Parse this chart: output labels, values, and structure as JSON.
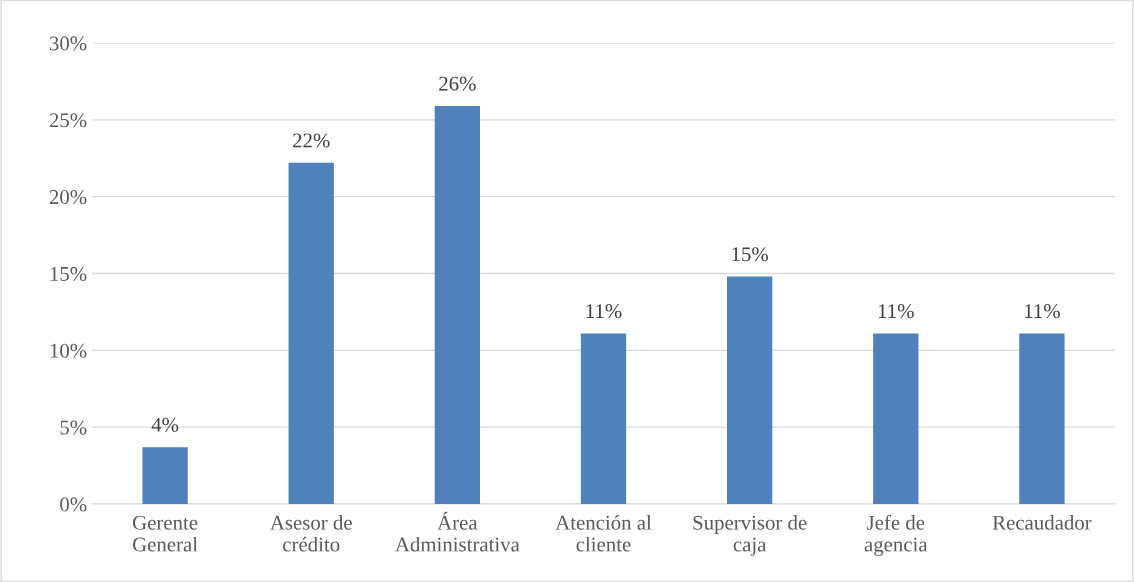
{
  "chart_data": {
    "type": "bar",
    "categories": [
      "Gerente\nGeneral",
      "Asesor de\ncrédito",
      "Área\nAdministrativa",
      "Atención al\ncliente",
      "Supervisor de\ncaja",
      "Jefe de\nagencia",
      "Recaudador"
    ],
    "values": [
      3.7,
      22.2,
      25.9,
      11.1,
      14.8,
      11.1,
      11.1
    ],
    "value_labels": [
      "4%",
      "22%",
      "26%",
      "11%",
      "15%",
      "11%",
      "11%"
    ],
    "color": "#4f81bd",
    "ylim": [
      0,
      30
    ],
    "yticks": [
      {
        "value": 0,
        "label": "0%"
      },
      {
        "value": 5,
        "label": "5%"
      },
      {
        "value": 10,
        "label": "10%"
      },
      {
        "value": 15,
        "label": "15%"
      },
      {
        "value": 20,
        "label": "20%"
      },
      {
        "value": 25,
        "label": "25%"
      },
      {
        "value": 30,
        "label": "30%"
      }
    ],
    "grid": "y"
  }
}
